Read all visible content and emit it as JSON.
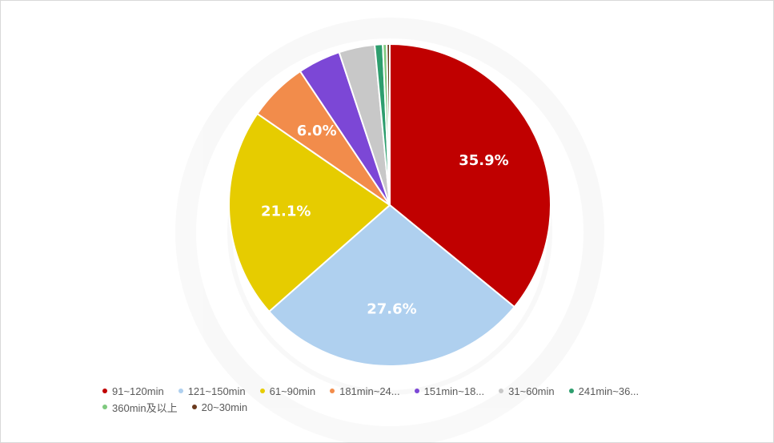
{
  "chart_data": {
    "type": "pie",
    "title": "",
    "slices": [
      {
        "label": "91~120min",
        "value": 35.9,
        "color": "#c00000",
        "value_label": "35.9%"
      },
      {
        "label": "121~150min",
        "value": 27.6,
        "color": "#afd0ef",
        "value_label": "27.6%"
      },
      {
        "label": "61~90min",
        "value": 21.1,
        "color": "#e6cc00",
        "value_label": "21.1%"
      },
      {
        "label": "181min~24...",
        "value": 6.0,
        "color": "#f28c4b",
        "value_label": "6.0%"
      },
      {
        "label": "151min~18...",
        "value": 4.3,
        "color": "#7c47d6",
        "value_label": ""
      },
      {
        "label": "31~60min",
        "value": 3.6,
        "color": "#c8c8c8",
        "value_label": ""
      },
      {
        "label": "241min~36...",
        "value": 0.8,
        "color": "#2e9e6e",
        "value_label": ""
      },
      {
        "label": "360min及以上",
        "value": 0.4,
        "color": "#7fc97f",
        "value_label": ""
      },
      {
        "label": "20~30min",
        "value": 0.3,
        "color": "#6b3a1e",
        "value_label": ""
      }
    ],
    "legend_position": "bottom-left"
  }
}
